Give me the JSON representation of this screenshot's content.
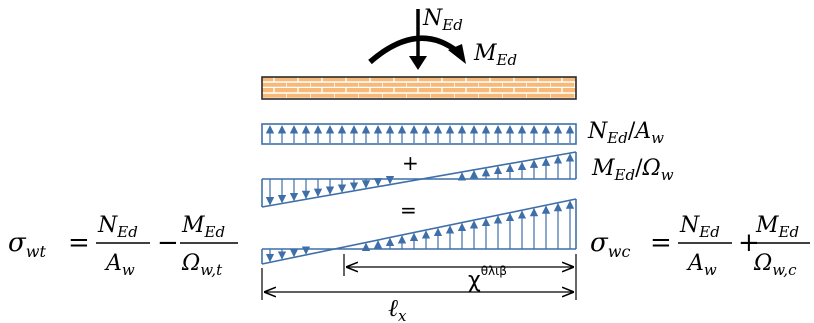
{
  "colors": {
    "masonry_fill": "#f7b978",
    "masonry_mortar": "#ffffff",
    "masonry_edge": "#2b2b2b",
    "stress_line": "#3f6fa8",
    "stress_arrow": "#4f86c6",
    "text": "#000000"
  },
  "top_loads": {
    "axial_force": {
      "symbol": "N",
      "sub": "Ed"
    },
    "moment": {
      "symbol": "M",
      "sub": "Ed"
    }
  },
  "diagram_labels": {
    "axial_stress": {
      "num": "N",
      "num_sub": "Ed",
      "den": "A",
      "den_sub": "w"
    },
    "bending_stress": {
      "num": "M",
      "num_sub": "Ed",
      "den": "Ω",
      "den_sub": "w"
    },
    "plus_sign": "+",
    "equals_sign": "="
  },
  "formula_left": {
    "lhs": "σ",
    "lhs_sub": "wt",
    "eq": "=",
    "t1_num": "N",
    "t1_num_sub": "Ed",
    "t1_den": "A",
    "t1_den_sub": "w",
    "op": "−",
    "t2_num": "M",
    "t2_num_sub": "Ed",
    "t2_den": "Ω",
    "t2_den_sub": "w,t"
  },
  "formula_right": {
    "lhs": "σ",
    "lhs_sub": "wc",
    "eq": "=",
    "t1_num": "N",
    "t1_num_sub": "Ed",
    "t1_den": "A",
    "t1_den_sub": "w",
    "op": "+",
    "t2_num": "M",
    "t2_num_sub": "Ed",
    "t2_den": "Ω",
    "t2_den_sub": "w,c"
  },
  "dimensions": {
    "compressed_length": "χ",
    "compressed_length_sup": "θλιβ",
    "total_length": "ℓ",
    "total_length_sub": "x"
  }
}
